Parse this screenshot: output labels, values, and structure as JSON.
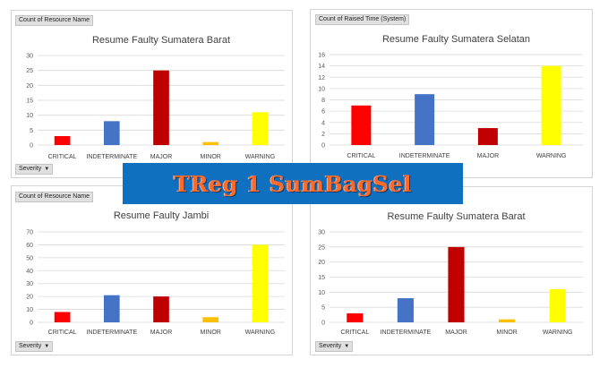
{
  "colors": {
    "CRITICAL": "#ff0000",
    "INDETERMINATE": "#4472c4",
    "MAJOR": "#c00000",
    "MINOR": "#ffc000",
    "WARNING": "#ffff00",
    "grid": "#d9d9d9",
    "banner_bg": "#1070c0",
    "banner_text": "#ff6a2a"
  },
  "banner": {
    "text": "TReg 1 SumBagSel"
  },
  "panels": [
    {
      "value_field": "Count of Resource Name",
      "filter_field": "Severity"
    },
    {
      "value_field": "Count of Raised Time  (System)",
      "filter_field": ""
    },
    {
      "value_field": "Count of Resource Name",
      "filter_field": "Severity"
    },
    {
      "value_field": "",
      "filter_field": "Severity"
    }
  ],
  "chart_data": [
    {
      "type": "bar",
      "title": "Resume Faulty Sumatera Barat",
      "categories": [
        "CRITICAL",
        "INDETERMINATE",
        "MAJOR",
        "MINOR",
        "WARNING"
      ],
      "values": [
        3,
        8,
        25,
        1,
        11
      ],
      "ylim": [
        0,
        30
      ],
      "yticks": [
        0,
        5,
        10,
        15,
        20,
        25,
        30
      ],
      "grid": true
    },
    {
      "type": "bar",
      "title": "Resume Faulty Sumatera Selatan",
      "categories": [
        "CRITICAL",
        "INDETERMINATE",
        "MAJOR",
        "WARNING"
      ],
      "values": [
        7,
        9,
        3,
        14
      ],
      "ylim": [
        0,
        16
      ],
      "yticks": [
        0,
        2,
        4,
        6,
        8,
        10,
        12,
        14,
        16
      ],
      "grid": true
    },
    {
      "type": "bar",
      "title": "Resume Faulty Jambi",
      "categories": [
        "CRITICAL",
        "INDETERMINATE",
        "MAJOR",
        "MINOR",
        "WARNING"
      ],
      "values": [
        8,
        21,
        20,
        4,
        60
      ],
      "ylim": [
        0,
        70
      ],
      "yticks": [
        0,
        10,
        20,
        30,
        40,
        50,
        60,
        70
      ],
      "grid": true
    },
    {
      "type": "bar",
      "title": "Resume Faulty Sumatera Barat",
      "categories": [
        "CRITICAL",
        "INDETERMINATE",
        "MAJOR",
        "MINOR",
        "WARNING"
      ],
      "values": [
        3,
        8,
        25,
        1,
        11
      ],
      "ylim": [
        0,
        30
      ],
      "yticks": [
        0,
        5,
        10,
        15,
        20,
        25,
        30
      ],
      "grid": true
    }
  ]
}
